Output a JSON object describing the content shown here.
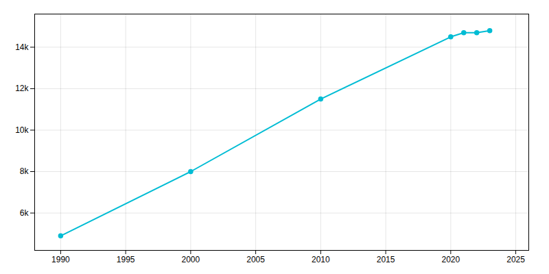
{
  "chart_data": {
    "type": "line",
    "x": [
      1990,
      2000,
      2010,
      2020,
      2021,
      2022,
      2023
    ],
    "values": [
      4900,
      8000,
      11500,
      14500,
      14700,
      14700,
      14800
    ],
    "color": "#00bcd4",
    "marker": "circle",
    "xlim": [
      1988,
      2026
    ],
    "xticks": [
      1990,
      1995,
      2000,
      2005,
      2010,
      2015,
      2020,
      2025
    ],
    "ylim": [
      4200,
      15600
    ],
    "yticks": [
      {
        "value": 6000,
        "label": "6k"
      },
      {
        "value": 8000,
        "label": "8k"
      },
      {
        "value": 10000,
        "label": "10k"
      },
      {
        "value": 12000,
        "label": "12k"
      },
      {
        "value": 14000,
        "label": "14k"
      }
    ],
    "grid": true
  }
}
